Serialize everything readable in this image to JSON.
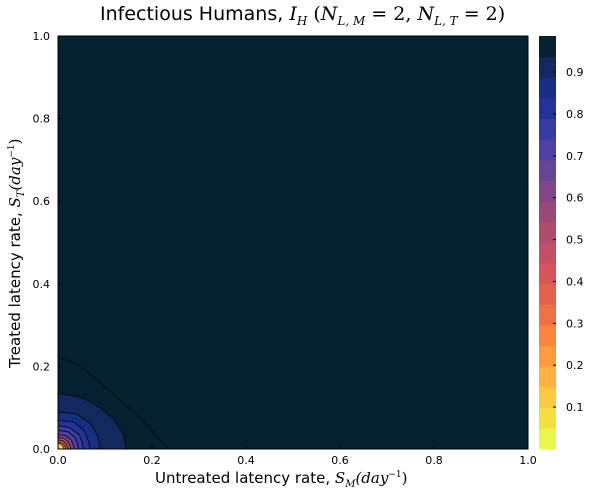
{
  "chart_data": {
    "type": "heatmap",
    "subtype": "filled-contour",
    "title": {
      "text": "Infectious Humans, ",
      "math_I": "I",
      "math_I_sub": "H",
      "open": " (",
      "N": "N",
      "sub_LM": "L, M",
      "eq_2a": " = 2, ",
      "sub_LT": "L, T",
      "eq_2b": " = 2)"
    },
    "xlabel": {
      "text": "Untreated latency rate, ",
      "S": "S",
      "S_sub": "M",
      "unit_open": "(day",
      "unit_exp": "−1",
      "unit_close": ")"
    },
    "ylabel": {
      "text": "Treated latency rate, ",
      "S": "S",
      "S_sub": "T",
      "unit_open": "(day",
      "unit_exp": "−1",
      "unit_close": ")"
    },
    "x_ticks": [
      "0.0",
      "0.2",
      "0.4",
      "0.6",
      "0.8",
      "1.0"
    ],
    "y_ticks": [
      "0.0",
      "0.2",
      "0.4",
      "0.6",
      "0.8",
      "1.0"
    ],
    "xlim": [
      0,
      1
    ],
    "ylim": [
      0,
      1
    ],
    "grid": false,
    "colorbar": {
      "ticks": [
        "0.1",
        "0.2",
        "0.3",
        "0.4",
        "0.5",
        "0.6",
        "0.7",
        "0.8",
        "0.9"
      ],
      "tick_values": [
        0.1,
        0.2,
        0.3,
        0.4,
        0.5,
        0.6,
        0.7,
        0.8,
        0.9
      ],
      "range": [
        0,
        0.986
      ],
      "levels": 20,
      "colors": [
        "#e9f64b",
        "#f3e03f",
        "#f9c940",
        "#fdb23f",
        "#fc9b3f",
        "#f7853e",
        "#ef7143",
        "#e3614f",
        "#d4565b",
        "#c25165",
        "#ad4d6e",
        "#974a78",
        "#7f4786",
        "#674595",
        "#4f40a2",
        "#383aa4",
        "#24339a",
        "#182e81",
        "#12285e",
        "#052132"
      ]
    },
    "contours": [
      {
        "level": 0.95,
        "boundary": [
          [
            0.0,
            0.22
          ],
          [
            0.03,
            0.212
          ],
          [
            0.06,
            0.19
          ],
          [
            0.1,
            0.15
          ],
          [
            0.14,
            0.11
          ],
          [
            0.18,
            0.07
          ],
          [
            0.21,
            0.03
          ],
          [
            0.236,
            0.0
          ]
        ]
      },
      {
        "level": 0.9,
        "boundary": [
          [
            0.0,
            0.135
          ],
          [
            0.05,
            0.125
          ],
          [
            0.09,
            0.1
          ],
          [
            0.12,
            0.07
          ],
          [
            0.14,
            0.035
          ],
          [
            0.145,
            0.0
          ]
        ]
      },
      {
        "level": 0.85,
        "boundary": [
          [
            0.0,
            0.09
          ],
          [
            0.04,
            0.085
          ],
          [
            0.07,
            0.06
          ],
          [
            0.085,
            0.03
          ],
          [
            0.09,
            0.0
          ]
        ]
      },
      {
        "level": 0.8,
        "boundary": [
          [
            0.0,
            0.07
          ],
          [
            0.035,
            0.065
          ],
          [
            0.055,
            0.045
          ],
          [
            0.065,
            0.02
          ],
          [
            0.068,
            0.0
          ]
        ]
      },
      {
        "level": 0.75,
        "boundary": [
          [
            0.0,
            0.056
          ],
          [
            0.025,
            0.052
          ],
          [
            0.045,
            0.035
          ],
          [
            0.052,
            0.015
          ],
          [
            0.054,
            0.0
          ]
        ]
      },
      {
        "level": 0.7,
        "boundary": [
          [
            0.0,
            0.045
          ],
          [
            0.02,
            0.042
          ],
          [
            0.036,
            0.028
          ],
          [
            0.042,
            0.012
          ],
          [
            0.043,
            0.0
          ]
        ]
      },
      {
        "level": 0.6,
        "boundary": [
          [
            0.0,
            0.035
          ],
          [
            0.016,
            0.032
          ],
          [
            0.028,
            0.022
          ],
          [
            0.033,
            0.009
          ],
          [
            0.034,
            0.0
          ]
        ]
      },
      {
        "level": 0.5,
        "boundary": [
          [
            0.0,
            0.028
          ],
          [
            0.013,
            0.026
          ],
          [
            0.022,
            0.017
          ],
          [
            0.026,
            0.007
          ],
          [
            0.027,
            0.0
          ]
        ]
      },
      {
        "level": 0.35,
        "boundary": [
          [
            0.0,
            0.022
          ],
          [
            0.01,
            0.02
          ],
          [
            0.017,
            0.013
          ],
          [
            0.02,
            0.005
          ],
          [
            0.021,
            0.0
          ]
        ]
      },
      {
        "level": 0.2,
        "boundary": [
          [
            0.0,
            0.017
          ],
          [
            0.008,
            0.015
          ],
          [
            0.013,
            0.01
          ],
          [
            0.0155,
            0.004
          ],
          [
            0.016,
            0.0
          ]
        ]
      },
      {
        "level": 0.1,
        "boundary": [
          [
            0.0,
            0.013
          ],
          [
            0.006,
            0.012
          ],
          [
            0.01,
            0.008
          ],
          [
            0.012,
            0.003
          ],
          [
            0.0125,
            0.0
          ]
        ]
      }
    ]
  }
}
